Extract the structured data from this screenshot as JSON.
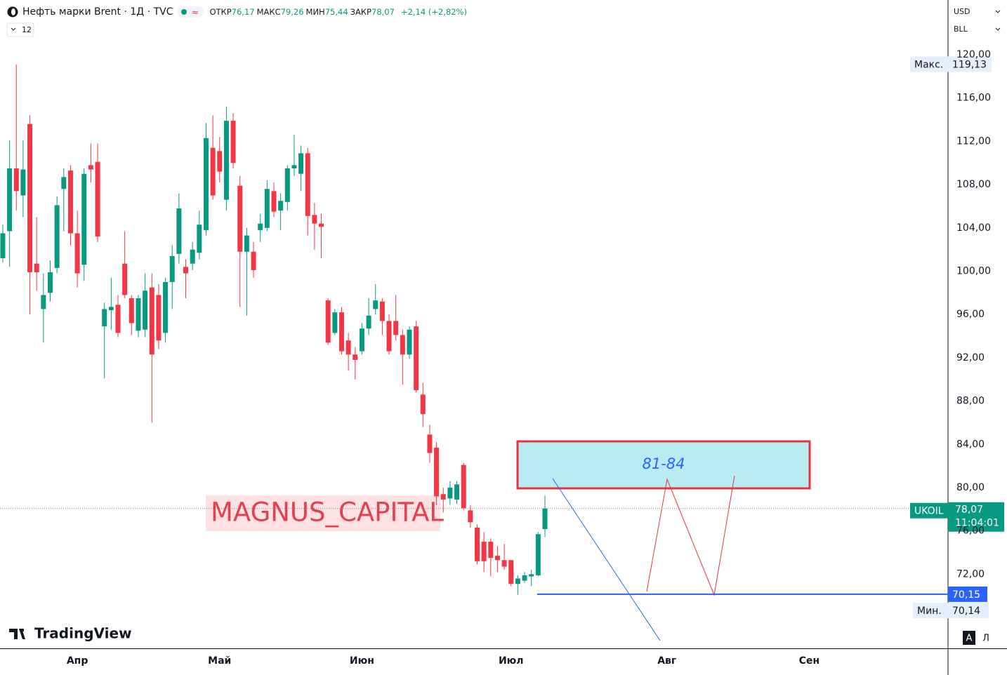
{
  "chart_data": {
    "type": "candlestick",
    "title": "Нефть марки Brent · 1Д · TVC",
    "ohlc_header": [
      {
        "name": "ОТКР",
        "text": "76,17"
      },
      {
        "name": "МАКС",
        "text": "79,26"
      },
      {
        "name": "МИН",
        "text": "75,44"
      },
      {
        "name": "ЗАКР",
        "text": "78,07"
      }
    ],
    "change": "+2,14 (+2,82%)",
    "interval": "12",
    "currency": "USD",
    "unit": "BLL",
    "up_color": "#089981",
    "down_color": "#f23645",
    "series": [
      {
        "open": [
          101.2,
          103.7,
          109.5,
          107.0,
          113.6,
          100.7,
          96.5,
          98.0,
          100.3,
          107.6,
          109.3,
          103.5,
          100.6,
          109.8,
          110.1,
          94.9,
          96.4,
          96.9,
          100.7,
          97.5,
          94.5,
          94.6,
          98.5,
          97.8,
          94.3,
          99.0,
          101.6,
          100.4,
          100.7,
          101.7,
          103.8,
          111.4,
          111.1,
          106.6,
          113.9,
          107.9,
          101.8,
          101.8,
          103.8,
          104.0,
          107.4,
          105.6,
          106.4,
          109.5,
          109.0,
          110.9,
          105.2,
          104.4,
          97.3,
          94.3,
          96.2,
          93.6,
          92.3,
          92.6,
          94.7,
          96.5,
          97.2,
          95.4,
          95.4,
          94.1,
          92.3,
          94.9,
          88.6,
          84.9,
          83.7,
          79.4,
          79.0,
          78.9,
          82.1,
          77.9,
          76.3,
          75.0,
          75.0,
          73.7,
          73.3,
          73.3,
          71.1,
          71.4,
          71.8,
          71.9,
          76.17
        ],
        "high": [
          104.3,
          112.1,
          119.1,
          112.1,
          114.4,
          105.0,
          99.8,
          101.0,
          106.9,
          109.5,
          109.8,
          105.6,
          109.5,
          111.8,
          111.8,
          97.1,
          99.4,
          97.8,
          103.7,
          97.8,
          97.8,
          99.8,
          99.8,
          98.8,
          99.4,
          102.4,
          107.2,
          101.1,
          102.7,
          105.6,
          113.7,
          114.4,
          112.4,
          115.2,
          114.6,
          108.8,
          104.0,
          102.7,
          105.3,
          108.4,
          108.2,
          107.2,
          109.8,
          112.6,
          111.6,
          111.4,
          106.3,
          105.3,
          97.5,
          96.5,
          96.7,
          94.3,
          93.0,
          95.2,
          97.5,
          98.8,
          97.5,
          96.0,
          97.8,
          94.6,
          94.9,
          95.4,
          89.7,
          85.8,
          84.2,
          80.0,
          80.6,
          80.6,
          82.3,
          78.4,
          76.6,
          75.9,
          75.3,
          74.6,
          74.8,
          73.3,
          71.9,
          72.2,
          72.4,
          75.9,
          79.26
        ],
        "low": [
          100.8,
          100.4,
          105.6,
          105.0,
          96.0,
          98.2,
          93.4,
          97.2,
          99.8,
          103.7,
          102.4,
          98.5,
          99.1,
          108.2,
          102.7,
          90.1,
          94.6,
          93.9,
          97.5,
          94.1,
          93.9,
          93.9,
          86.0,
          92.8,
          93.4,
          96.5,
          100.7,
          97.5,
          100.1,
          101.1,
          103.3,
          106.6,
          108.2,
          105.6,
          109.5,
          96.7,
          95.9,
          99.4,
          102.7,
          103.7,
          105.0,
          103.8,
          105.6,
          108.8,
          107.4,
          103.3,
          102.0,
          101.2,
          93.2,
          94.1,
          92.3,
          90.8,
          90.0,
          92.3,
          94.1,
          96.0,
          94.1,
          92.3,
          93.6,
          89.5,
          91.9,
          88.8,
          85.6,
          82.3,
          78.4,
          77.7,
          78.4,
          78.5,
          77.9,
          76.3,
          72.9,
          72.2,
          71.8,
          72.2,
          72.4,
          70.9,
          70.1,
          71.2,
          70.9,
          71.8,
          75.44
        ],
        "close": [
          103.5,
          109.5,
          107.4,
          109.4,
          99.9,
          99.9,
          97.8,
          99.9,
          106.1,
          108.7,
          103.5,
          99.8,
          109.0,
          109.4,
          103.2,
          96.5,
          96.7,
          94.3,
          97.8,
          95.2,
          97.5,
          98.2,
          92.3,
          93.6,
          99.0,
          101.4,
          105.8,
          99.8,
          102.0,
          104.3,
          112.3,
          107.0,
          109.2,
          113.9,
          110.0,
          101.8,
          103.3,
          100.1,
          104.4,
          107.6,
          105.5,
          106.5,
          109.5,
          109.8,
          110.9,
          105.1,
          104.4,
          104.1,
          93.4,
          96.2,
          92.6,
          92.3,
          91.8,
          94.7,
          95.9,
          97.3,
          95.4,
          92.6,
          94.1,
          92.3,
          94.6,
          89.0,
          86.8,
          83.2,
          79.2,
          78.9,
          80.0,
          80.3,
          78.1,
          76.8,
          73.2,
          73.2,
          73.5,
          73.3,
          72.7,
          71.1,
          71.6,
          71.9,
          72.0,
          75.7,
          78.07
        ]
      }
    ],
    "xlim": [
      -0.41,
      139.48
    ],
    "xticks": [
      {
        "value": 11,
        "label": "Апр"
      },
      {
        "value": 32,
        "label": "Май"
      },
      {
        "value": 53,
        "label": "Июн"
      },
      {
        "value": 75,
        "label": "Июл"
      },
      {
        "value": 98,
        "label": "Авг"
      },
      {
        "value": 119,
        "label": "Сен"
      }
    ],
    "ylim": [
      65.15,
      125.06
    ],
    "yticks": [
      {
        "value": 120,
        "label": "120,00"
      },
      {
        "value": 116,
        "label": "116,00"
      },
      {
        "value": 112,
        "label": "112,00"
      },
      {
        "value": 108,
        "label": "108,00"
      },
      {
        "value": 104,
        "label": "104,00"
      },
      {
        "value": 100,
        "label": "100,00"
      },
      {
        "value": 96,
        "label": "96,00"
      },
      {
        "value": 92,
        "label": "92,00"
      },
      {
        "value": 88,
        "label": "88,00"
      },
      {
        "value": 84,
        "label": "84,00"
      },
      {
        "value": 80,
        "label": "80,00"
      },
      {
        "value": 76,
        "label": "76,00"
      },
      {
        "value": 72,
        "label": "72,00"
      }
    ],
    "grid": false,
    "max": {
      "name": "Макс.",
      "price": {
        "value": 119.13,
        "label": "119,13"
      }
    },
    "min": {
      "name": "Мин.",
      "price": {
        "value": 70.14,
        "label": "70,14"
      }
    },
    "last": {
      "symbol": "UKOIL",
      "price": {
        "value": 78.07,
        "label": "78,07"
      },
      "countdown": "11:04:01"
    },
    "level": {
      "price": {
        "value": 70.15,
        "label": "70,15"
      },
      "color": "#2962ff"
    },
    "zone_label": "81-84",
    "watermark": "MAGNUS_CAPITAL",
    "brand": "TradingView",
    "scale_modes": [
      "A",
      "Л"
    ]
  }
}
